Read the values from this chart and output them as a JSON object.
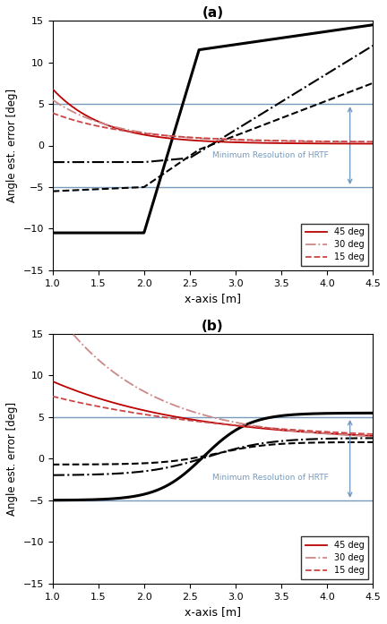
{
  "title_a": "(a)",
  "title_b": "(b)",
  "xlabel": "x-axis [m]",
  "ylabel": "Angle est. error [deg]",
  "xlim": [
    1,
    4.5
  ],
  "ylim": [
    -15,
    15
  ],
  "hline_pos": 5,
  "hline_neg": -5,
  "hline_color": "#7799bb",
  "annotation_text": "Minimum Resolution of HRTF",
  "annotation_color": "#7799bb",
  "legend_labels": [
    "45 deg",
    "30 deg",
    "15 deg"
  ]
}
